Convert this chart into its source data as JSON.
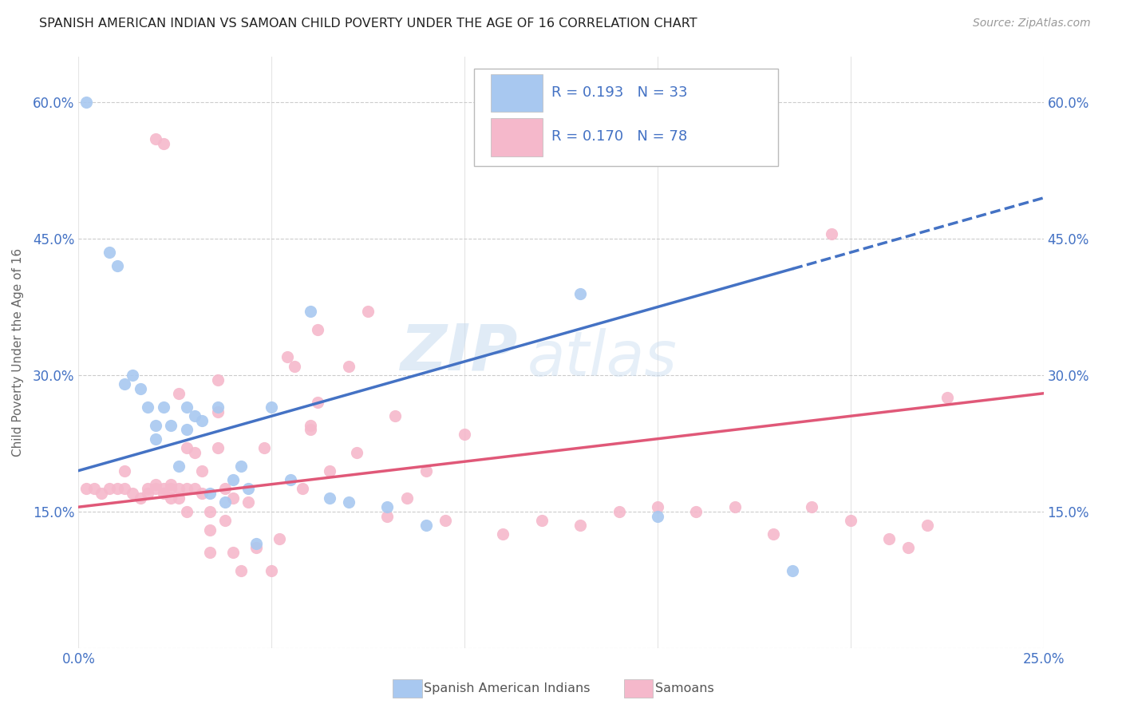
{
  "title": "SPANISH AMERICAN INDIAN VS SAMOAN CHILD POVERTY UNDER THE AGE OF 16 CORRELATION CHART",
  "source": "Source: ZipAtlas.com",
  "ylabel": "Child Poverty Under the Age of 16",
  "xlim": [
    0.0,
    0.25
  ],
  "ylim": [
    0.0,
    0.65
  ],
  "xticks": [
    0.0,
    0.05,
    0.1,
    0.15,
    0.2,
    0.25
  ],
  "xticklabels": [
    "0.0%",
    "",
    "",
    "",
    "",
    "25.0%"
  ],
  "yticks": [
    0.0,
    0.15,
    0.3,
    0.45,
    0.6
  ],
  "yticklabels": [
    "",
    "15.0%",
    "30.0%",
    "45.0%",
    "60.0%"
  ],
  "blue_color": "#A8C8F0",
  "pink_color": "#F5B8CB",
  "line_blue": "#4472C4",
  "line_pink": "#E05878",
  "axis_color": "#4472C4",
  "R_blue": 0.193,
  "N_blue": 33,
  "R_pink": 0.17,
  "N_pink": 78,
  "blue_line_intercept": 0.195,
  "blue_line_slope": 1.2,
  "blue_line_solid_end": 0.185,
  "pink_line_intercept": 0.155,
  "pink_line_slope": 0.5,
  "blue_scatter_x": [
    0.002,
    0.008,
    0.01,
    0.012,
    0.014,
    0.016,
    0.018,
    0.02,
    0.02,
    0.022,
    0.024,
    0.026,
    0.028,
    0.028,
    0.03,
    0.032,
    0.034,
    0.036,
    0.038,
    0.04,
    0.042,
    0.044,
    0.046,
    0.05,
    0.055,
    0.06,
    0.065,
    0.07,
    0.08,
    0.09,
    0.13,
    0.15,
    0.185
  ],
  "blue_scatter_y": [
    0.6,
    0.435,
    0.42,
    0.29,
    0.3,
    0.285,
    0.265,
    0.245,
    0.23,
    0.265,
    0.245,
    0.2,
    0.24,
    0.265,
    0.255,
    0.25,
    0.17,
    0.265,
    0.16,
    0.185,
    0.2,
    0.175,
    0.115,
    0.265,
    0.185,
    0.37,
    0.165,
    0.16,
    0.155,
    0.135,
    0.39,
    0.145,
    0.085
  ],
  "pink_scatter_x": [
    0.002,
    0.004,
    0.006,
    0.008,
    0.01,
    0.012,
    0.012,
    0.014,
    0.016,
    0.018,
    0.018,
    0.02,
    0.02,
    0.02,
    0.022,
    0.022,
    0.022,
    0.024,
    0.024,
    0.024,
    0.026,
    0.026,
    0.026,
    0.028,
    0.028,
    0.028,
    0.03,
    0.03,
    0.032,
    0.032,
    0.034,
    0.034,
    0.034,
    0.036,
    0.036,
    0.036,
    0.038,
    0.038,
    0.04,
    0.04,
    0.042,
    0.044,
    0.046,
    0.048,
    0.05,
    0.052,
    0.054,
    0.056,
    0.058,
    0.06,
    0.06,
    0.062,
    0.062,
    0.065,
    0.07,
    0.072,
    0.075,
    0.08,
    0.082,
    0.085,
    0.09,
    0.095,
    0.1,
    0.11,
    0.12,
    0.13,
    0.14,
    0.15,
    0.16,
    0.17,
    0.18,
    0.19,
    0.195,
    0.2,
    0.21,
    0.215,
    0.22,
    0.225
  ],
  "pink_scatter_y": [
    0.175,
    0.175,
    0.17,
    0.175,
    0.175,
    0.175,
    0.195,
    0.17,
    0.165,
    0.17,
    0.175,
    0.18,
    0.175,
    0.56,
    0.555,
    0.17,
    0.175,
    0.175,
    0.165,
    0.18,
    0.28,
    0.175,
    0.165,
    0.22,
    0.175,
    0.15,
    0.215,
    0.175,
    0.17,
    0.195,
    0.105,
    0.15,
    0.13,
    0.26,
    0.295,
    0.22,
    0.175,
    0.14,
    0.165,
    0.105,
    0.085,
    0.16,
    0.11,
    0.22,
    0.085,
    0.12,
    0.32,
    0.31,
    0.175,
    0.24,
    0.245,
    0.27,
    0.35,
    0.195,
    0.31,
    0.215,
    0.37,
    0.145,
    0.255,
    0.165,
    0.195,
    0.14,
    0.235,
    0.125,
    0.14,
    0.135,
    0.15,
    0.155,
    0.15,
    0.155,
    0.125,
    0.155,
    0.455,
    0.14,
    0.12,
    0.11,
    0.135,
    0.275
  ]
}
